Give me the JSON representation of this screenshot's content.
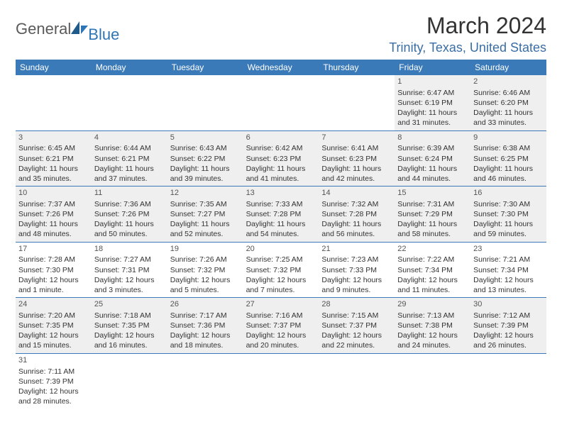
{
  "logo": {
    "main": "General",
    "blue": "Blue"
  },
  "title": "March 2024",
  "location": "Trinity, Texas, United States",
  "weekdays": [
    "Sunday",
    "Monday",
    "Tuesday",
    "Wednesday",
    "Thursday",
    "Friday",
    "Saturday"
  ],
  "colors": {
    "header_bg": "#3a7ab8",
    "header_text": "#ffffff",
    "shaded_bg": "#efefef",
    "border": "#3a7ab8",
    "location_text": "#3a6ea5",
    "logo_blue": "#2e75b6"
  },
  "weeks": [
    [
      {
        "empty": true
      },
      {
        "empty": true
      },
      {
        "empty": true
      },
      {
        "empty": true
      },
      {
        "empty": true
      },
      {
        "n": "1",
        "sr": "Sunrise: 6:47 AM",
        "ss": "Sunset: 6:19 PM",
        "d1": "Daylight: 11 hours",
        "d2": "and 31 minutes.",
        "shaded": true
      },
      {
        "n": "2",
        "sr": "Sunrise: 6:46 AM",
        "ss": "Sunset: 6:20 PM",
        "d1": "Daylight: 11 hours",
        "d2": "and 33 minutes.",
        "shaded": true
      }
    ],
    [
      {
        "n": "3",
        "sr": "Sunrise: 6:45 AM",
        "ss": "Sunset: 6:21 PM",
        "d1": "Daylight: 11 hours",
        "d2": "and 35 minutes.",
        "shaded": true
      },
      {
        "n": "4",
        "sr": "Sunrise: 6:44 AM",
        "ss": "Sunset: 6:21 PM",
        "d1": "Daylight: 11 hours",
        "d2": "and 37 minutes.",
        "shaded": true
      },
      {
        "n": "5",
        "sr": "Sunrise: 6:43 AM",
        "ss": "Sunset: 6:22 PM",
        "d1": "Daylight: 11 hours",
        "d2": "and 39 minutes.",
        "shaded": true
      },
      {
        "n": "6",
        "sr": "Sunrise: 6:42 AM",
        "ss": "Sunset: 6:23 PM",
        "d1": "Daylight: 11 hours",
        "d2": "and 41 minutes.",
        "shaded": true
      },
      {
        "n": "7",
        "sr": "Sunrise: 6:41 AM",
        "ss": "Sunset: 6:23 PM",
        "d1": "Daylight: 11 hours",
        "d2": "and 42 minutes.",
        "shaded": true
      },
      {
        "n": "8",
        "sr": "Sunrise: 6:39 AM",
        "ss": "Sunset: 6:24 PM",
        "d1": "Daylight: 11 hours",
        "d2": "and 44 minutes.",
        "shaded": true
      },
      {
        "n": "9",
        "sr": "Sunrise: 6:38 AM",
        "ss": "Sunset: 6:25 PM",
        "d1": "Daylight: 11 hours",
        "d2": "and 46 minutes.",
        "shaded": true
      }
    ],
    [
      {
        "n": "10",
        "sr": "Sunrise: 7:37 AM",
        "ss": "Sunset: 7:26 PM",
        "d1": "Daylight: 11 hours",
        "d2": "and 48 minutes.",
        "shaded": true
      },
      {
        "n": "11",
        "sr": "Sunrise: 7:36 AM",
        "ss": "Sunset: 7:26 PM",
        "d1": "Daylight: 11 hours",
        "d2": "and 50 minutes.",
        "shaded": true
      },
      {
        "n": "12",
        "sr": "Sunrise: 7:35 AM",
        "ss": "Sunset: 7:27 PM",
        "d1": "Daylight: 11 hours",
        "d2": "and 52 minutes.",
        "shaded": true
      },
      {
        "n": "13",
        "sr": "Sunrise: 7:33 AM",
        "ss": "Sunset: 7:28 PM",
        "d1": "Daylight: 11 hours",
        "d2": "and 54 minutes.",
        "shaded": true
      },
      {
        "n": "14",
        "sr": "Sunrise: 7:32 AM",
        "ss": "Sunset: 7:28 PM",
        "d1": "Daylight: 11 hours",
        "d2": "and 56 minutes.",
        "shaded": true
      },
      {
        "n": "15",
        "sr": "Sunrise: 7:31 AM",
        "ss": "Sunset: 7:29 PM",
        "d1": "Daylight: 11 hours",
        "d2": "and 58 minutes.",
        "shaded": true
      },
      {
        "n": "16",
        "sr": "Sunrise: 7:30 AM",
        "ss": "Sunset: 7:30 PM",
        "d1": "Daylight: 11 hours",
        "d2": "and 59 minutes.",
        "shaded": true
      }
    ],
    [
      {
        "n": "17",
        "sr": "Sunrise: 7:28 AM",
        "ss": "Sunset: 7:30 PM",
        "d1": "Daylight: 12 hours",
        "d2": "and 1 minute.",
        "shaded": false
      },
      {
        "n": "18",
        "sr": "Sunrise: 7:27 AM",
        "ss": "Sunset: 7:31 PM",
        "d1": "Daylight: 12 hours",
        "d2": "and 3 minutes.",
        "shaded": false
      },
      {
        "n": "19",
        "sr": "Sunrise: 7:26 AM",
        "ss": "Sunset: 7:32 PM",
        "d1": "Daylight: 12 hours",
        "d2": "and 5 minutes.",
        "shaded": false
      },
      {
        "n": "20",
        "sr": "Sunrise: 7:25 AM",
        "ss": "Sunset: 7:32 PM",
        "d1": "Daylight: 12 hours",
        "d2": "and 7 minutes.",
        "shaded": false
      },
      {
        "n": "21",
        "sr": "Sunrise: 7:23 AM",
        "ss": "Sunset: 7:33 PM",
        "d1": "Daylight: 12 hours",
        "d2": "and 9 minutes.",
        "shaded": false
      },
      {
        "n": "22",
        "sr": "Sunrise: 7:22 AM",
        "ss": "Sunset: 7:34 PM",
        "d1": "Daylight: 12 hours",
        "d2": "and 11 minutes.",
        "shaded": false
      },
      {
        "n": "23",
        "sr": "Sunrise: 7:21 AM",
        "ss": "Sunset: 7:34 PM",
        "d1": "Daylight: 12 hours",
        "d2": "and 13 minutes.",
        "shaded": false
      }
    ],
    [
      {
        "n": "24",
        "sr": "Sunrise: 7:20 AM",
        "ss": "Sunset: 7:35 PM",
        "d1": "Daylight: 12 hours",
        "d2": "and 15 minutes.",
        "shaded": true
      },
      {
        "n": "25",
        "sr": "Sunrise: 7:18 AM",
        "ss": "Sunset: 7:35 PM",
        "d1": "Daylight: 12 hours",
        "d2": "and 16 minutes.",
        "shaded": true
      },
      {
        "n": "26",
        "sr": "Sunrise: 7:17 AM",
        "ss": "Sunset: 7:36 PM",
        "d1": "Daylight: 12 hours",
        "d2": "and 18 minutes.",
        "shaded": true
      },
      {
        "n": "27",
        "sr": "Sunrise: 7:16 AM",
        "ss": "Sunset: 7:37 PM",
        "d1": "Daylight: 12 hours",
        "d2": "and 20 minutes.",
        "shaded": true
      },
      {
        "n": "28",
        "sr": "Sunrise: 7:15 AM",
        "ss": "Sunset: 7:37 PM",
        "d1": "Daylight: 12 hours",
        "d2": "and 22 minutes.",
        "shaded": true
      },
      {
        "n": "29",
        "sr": "Sunrise: 7:13 AM",
        "ss": "Sunset: 7:38 PM",
        "d1": "Daylight: 12 hours",
        "d2": "and 24 minutes.",
        "shaded": true
      },
      {
        "n": "30",
        "sr": "Sunrise: 7:12 AM",
        "ss": "Sunset: 7:39 PM",
        "d1": "Daylight: 12 hours",
        "d2": "and 26 minutes.",
        "shaded": true
      }
    ],
    [
      {
        "n": "31",
        "sr": "Sunrise: 7:11 AM",
        "ss": "Sunset: 7:39 PM",
        "d1": "Daylight: 12 hours",
        "d2": "and 28 minutes.",
        "shaded": false
      },
      {
        "empty": true
      },
      {
        "empty": true
      },
      {
        "empty": true
      },
      {
        "empty": true
      },
      {
        "empty": true
      },
      {
        "empty": true
      }
    ]
  ]
}
